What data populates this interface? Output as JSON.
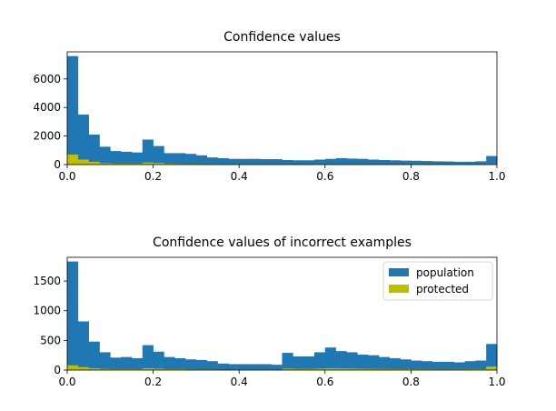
{
  "chart_data": [
    {
      "type": "bar",
      "title": "Confidence values",
      "xlim": [
        0,
        1
      ],
      "ylim": [
        0,
        7900
      ],
      "xticks": [
        0.0,
        0.2,
        0.4,
        0.6,
        0.8,
        1.0
      ],
      "xtick_labels": [
        "0.0",
        "0.2",
        "0.4",
        "0.6",
        "0.8",
        "1.0"
      ],
      "yticks": [
        0,
        2000,
        4000,
        6000
      ],
      "ytick_labels": [
        "0",
        "2000",
        "4000",
        "6000"
      ],
      "bin_width": 0.025,
      "bin_starts": [
        0.0,
        0.025,
        0.05,
        0.075,
        0.1,
        0.125,
        0.15,
        0.175,
        0.2,
        0.225,
        0.25,
        0.275,
        0.3,
        0.325,
        0.35,
        0.375,
        0.4,
        0.425,
        0.45,
        0.475,
        0.5,
        0.525,
        0.55,
        0.575,
        0.6,
        0.625,
        0.65,
        0.675,
        0.7,
        0.725,
        0.75,
        0.775,
        0.8,
        0.825,
        0.85,
        0.875,
        0.9,
        0.925,
        0.95,
        0.975
      ],
      "legend": false,
      "series": [
        {
          "color": "#1f77b4",
          "values": [
            7600,
            3500,
            2100,
            1250,
            950,
            900,
            850,
            1750,
            1300,
            800,
            800,
            750,
            650,
            500,
            450,
            400,
            400,
            400,
            380,
            380,
            320,
            300,
            300,
            350,
            400,
            450,
            420,
            400,
            350,
            320,
            300,
            280,
            270,
            250,
            230,
            220,
            200,
            200,
            230,
            600
          ]
        },
        {
          "color": "#bfbf00",
          "values": [
            700,
            350,
            200,
            100,
            70,
            60,
            60,
            150,
            120,
            60,
            50,
            45,
            40,
            35,
            30,
            30,
            25,
            25,
            25,
            25,
            20,
            20,
            20,
            25,
            30,
            30,
            25,
            25,
            20,
            20,
            20,
            15,
            15,
            15,
            15,
            15,
            15,
            15,
            20,
            40
          ]
        }
      ]
    },
    {
      "type": "bar",
      "title": "Confidence values of incorrect examples",
      "xlim": [
        0,
        1
      ],
      "ylim": [
        0,
        1900
      ],
      "xticks": [
        0.0,
        0.2,
        0.4,
        0.6,
        0.8,
        1.0
      ],
      "xtick_labels": [
        "0.0",
        "0.2",
        "0.4",
        "0.6",
        "0.8",
        "1.0"
      ],
      "yticks": [
        0,
        500,
        1000,
        1500
      ],
      "ytick_labels": [
        "0",
        "500",
        "1000",
        "1500"
      ],
      "bin_width": 0.025,
      "bin_starts": [
        0.0,
        0.025,
        0.05,
        0.075,
        0.1,
        0.125,
        0.15,
        0.175,
        0.2,
        0.225,
        0.25,
        0.275,
        0.3,
        0.325,
        0.35,
        0.375,
        0.4,
        0.425,
        0.45,
        0.475,
        0.5,
        0.525,
        0.55,
        0.575,
        0.6,
        0.625,
        0.65,
        0.675,
        0.7,
        0.725,
        0.75,
        0.775,
        0.8,
        0.825,
        0.85,
        0.875,
        0.9,
        0.925,
        0.95,
        0.975
      ],
      "legend": true,
      "legend_position": "upper right",
      "series": [
        {
          "name": "population",
          "color": "#1f77b4",
          "values": [
            1830,
            820,
            480,
            300,
            210,
            220,
            200,
            420,
            310,
            220,
            200,
            180,
            170,
            150,
            110,
            100,
            100,
            100,
            100,
            90,
            290,
            230,
            230,
            300,
            380,
            320,
            300,
            260,
            250,
            220,
            200,
            180,
            160,
            150,
            140,
            140,
            130,
            150,
            160,
            440
          ]
        },
        {
          "name": "protected",
          "color": "#bfbf00",
          "values": [
            80,
            50,
            30,
            20,
            15,
            15,
            15,
            30,
            25,
            15,
            15,
            12,
            10,
            10,
            8,
            8,
            8,
            8,
            8,
            7,
            25,
            20,
            20,
            25,
            30,
            28,
            25,
            22,
            20,
            18,
            16,
            15,
            14,
            13,
            12,
            12,
            12,
            14,
            15,
            60
          ]
        }
      ]
    }
  ]
}
